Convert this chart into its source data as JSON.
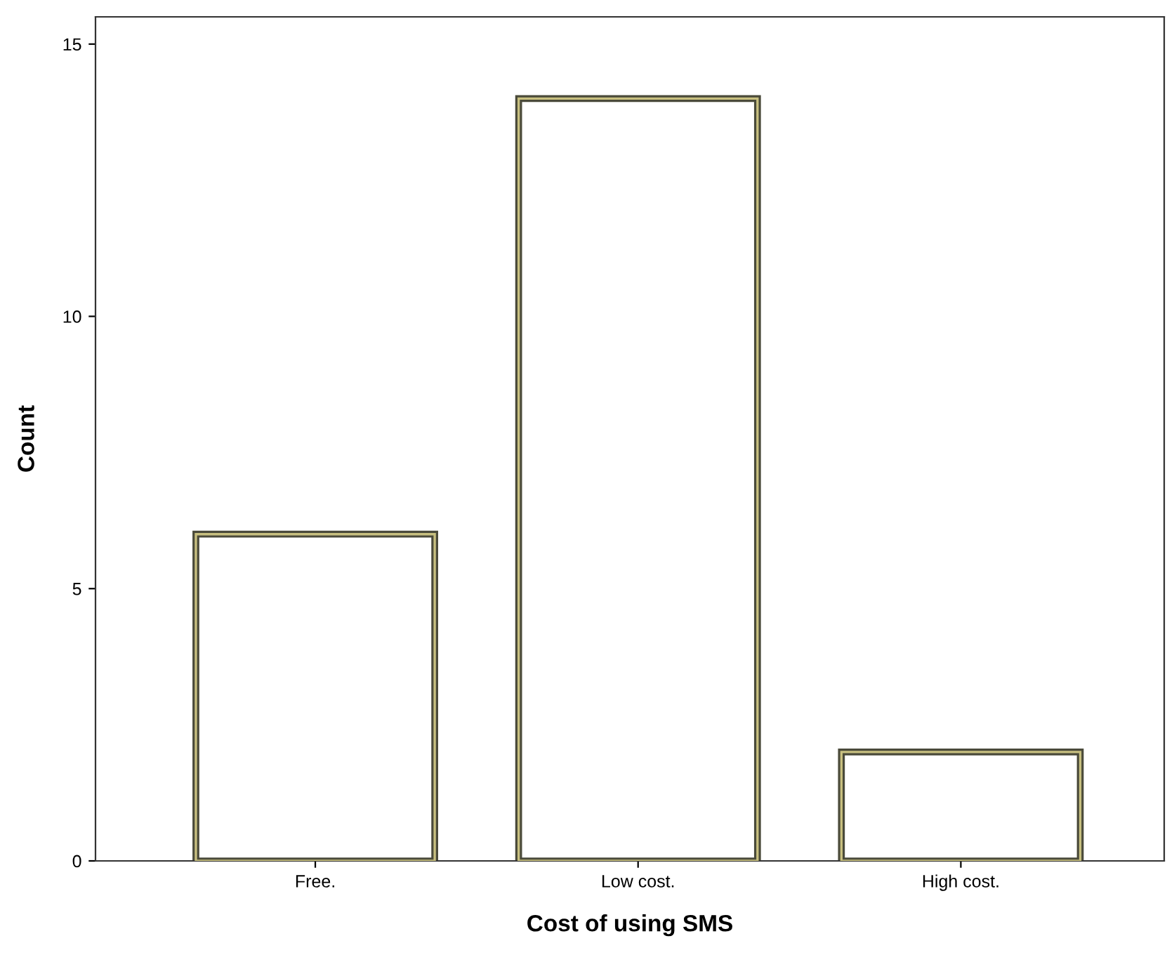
{
  "chart_data": {
    "type": "bar",
    "xlabel": "Cost of using SMS",
    "ylabel": "Count",
    "categories": [
      "Free.",
      "Low cost.",
      "High cost."
    ],
    "values": [
      6,
      14,
      2
    ],
    "color": "#ffffff",
    "ylim": [
      0,
      15.5
    ],
    "yticks": [
      0,
      5,
      10,
      15
    ]
  }
}
